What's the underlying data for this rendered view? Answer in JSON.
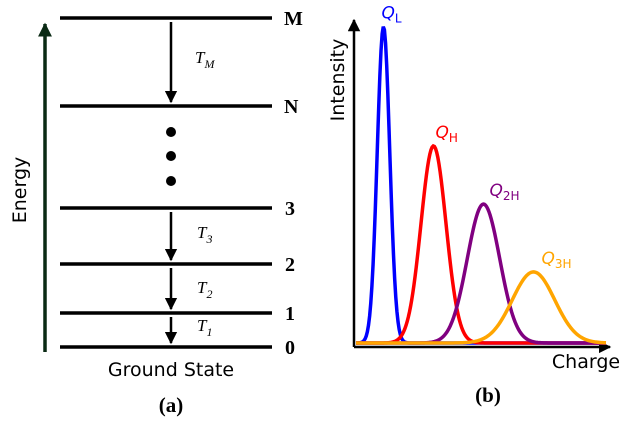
{
  "panel_a": {
    "axis_label": "Energy",
    "ground_label": "Ground State",
    "caption": "(a)",
    "levels": [
      {
        "label": "M"
      },
      {
        "label": "N"
      },
      {
        "label": "3"
      },
      {
        "label": "2"
      },
      {
        "label": "1"
      },
      {
        "label": "0"
      }
    ],
    "transitions": [
      {
        "main": "T",
        "sub": "M"
      },
      {
        "main": "T",
        "sub": "3"
      },
      {
        "main": "T",
        "sub": "2"
      },
      {
        "main": "T",
        "sub": "1"
      }
    ]
  },
  "panel_b": {
    "caption": "(b)",
    "chart_data": {
      "type": "line",
      "xlabel": "Charge",
      "ylabel": "Intensity",
      "grid": false,
      "series": [
        {
          "name_main": "Q",
          "name_sub": "L",
          "color": "#0000ff",
          "peak_x": 0.11,
          "peak_y": 0.98,
          "sigma": 0.025
        },
        {
          "name_main": "Q",
          "name_sub": "H",
          "color": "#ff0000",
          "peak_x": 0.31,
          "peak_y": 0.61,
          "sigma": 0.05
        },
        {
          "name_main": "Q",
          "name_sub": "2H",
          "color": "#800080",
          "peak_x": 0.51,
          "peak_y": 0.43,
          "sigma": 0.065
        },
        {
          "name_main": "Q",
          "name_sub": "3H",
          "color": "#ffa500",
          "peak_x": 0.71,
          "peak_y": 0.22,
          "sigma": 0.085
        }
      ]
    }
  }
}
